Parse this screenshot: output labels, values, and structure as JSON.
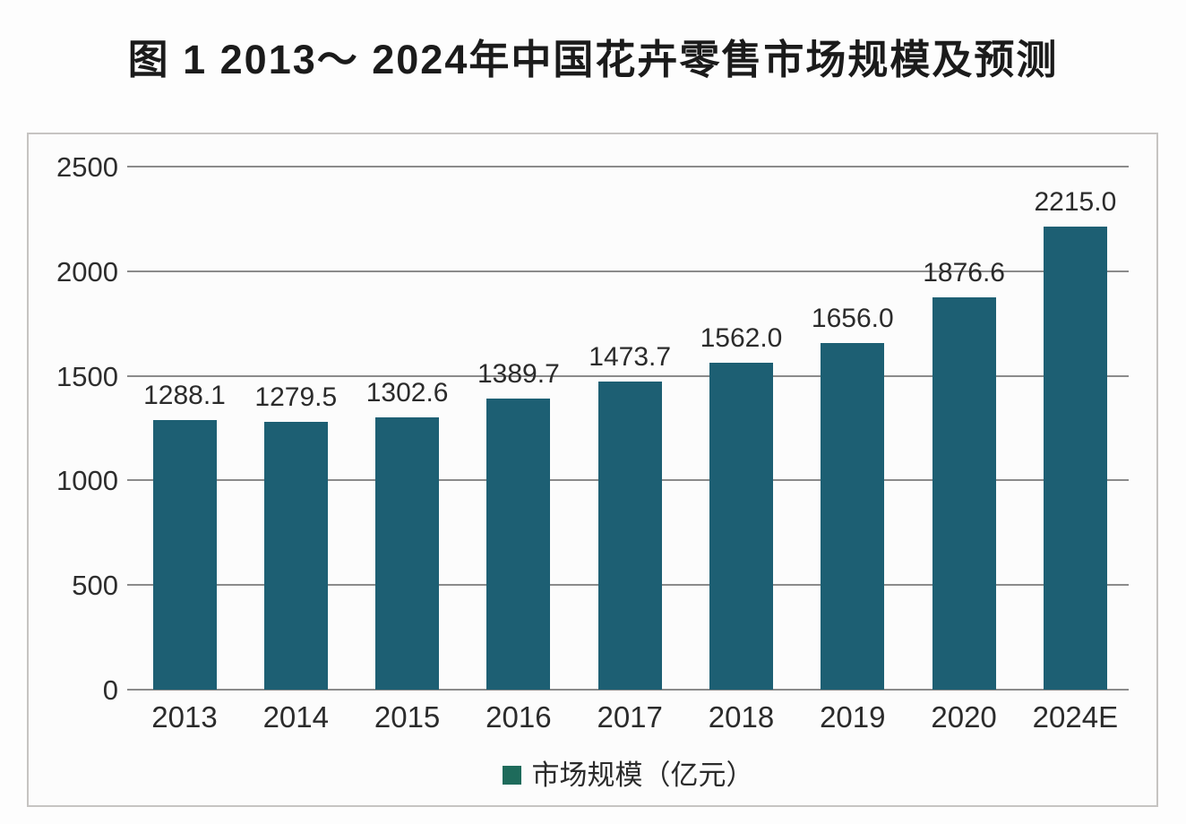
{
  "title": "图 1  2013～ 2024年中国花卉零售市场规模及预测",
  "legend": {
    "label": "市场规模（亿元）",
    "marker_icon": "square-icon"
  },
  "colors": {
    "bar": "#1d5f73",
    "legend_marker": "#1e6b5b",
    "gridline": "#8b8b8b",
    "text": "#2b2b2b",
    "border": "#c6c4c2",
    "background": "#fdfdfd"
  },
  "chart_data": {
    "type": "bar",
    "title": "图 1  2013～ 2024年中国花卉零售市场规模及预测",
    "categories": [
      "2013",
      "2014",
      "2015",
      "2016",
      "2017",
      "2018",
      "2019",
      "2020",
      "2024E"
    ],
    "values": [
      1288.1,
      1279.5,
      1302.6,
      1389.7,
      1473.7,
      1562.0,
      1656.0,
      1876.6,
      2215.0
    ],
    "value_labels": [
      "1288.1",
      "1279.5",
      "1302.6",
      "1389.7",
      "1473.7",
      "1562.0",
      "1656.0",
      "1876.6",
      "2215.0"
    ],
    "series_name": "市场规模（亿元）",
    "xlabel": "",
    "ylabel": "",
    "ylim": [
      0,
      2500
    ],
    "yticks": [
      0,
      500,
      1000,
      1500,
      2000,
      2500
    ],
    "grid": true,
    "legend_position": "bottom"
  }
}
